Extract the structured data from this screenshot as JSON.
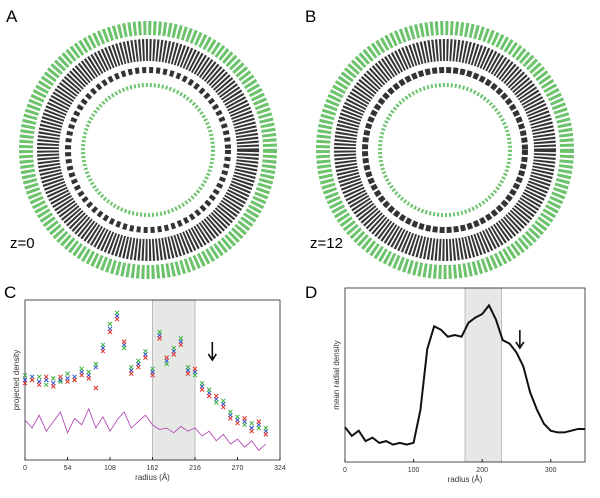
{
  "panels": {
    "a": {
      "letter": "A",
      "caption": "z=0"
    },
    "b": {
      "letter": "B",
      "caption": "z=12"
    }
  },
  "chart_data": [
    {
      "type": "line",
      "letter": "C",
      "xlabel": "radius (Å)",
      "ylabel": "projected density",
      "xlim": [
        0,
        324
      ],
      "ylim": [
        0,
        1
      ],
      "xticks": [
        0,
        54,
        108,
        162,
        216,
        270,
        324
      ],
      "shaded_region": [
        162,
        216
      ],
      "arrow_x": 238,
      "x": [
        0,
        9,
        18,
        27,
        36,
        45,
        54,
        63,
        72,
        81,
        90,
        99,
        108,
        117,
        126,
        135,
        144,
        153,
        162,
        171,
        180,
        189,
        198,
        207,
        216,
        225,
        234,
        243,
        252,
        261,
        270,
        279,
        288,
        297,
        306
      ],
      "series": [
        {
          "color": "#2b4fd6",
          "style": "markers",
          "values": [
            0.5,
            0.52,
            0.49,
            0.5,
            0.48,
            0.5,
            0.51,
            0.52,
            0.55,
            0.53,
            0.58,
            0.7,
            0.82,
            0.9,
            0.72,
            0.56,
            0.6,
            0.66,
            0.55,
            0.78,
            0.62,
            0.68,
            0.74,
            0.56,
            0.55,
            0.46,
            0.42,
            0.38,
            0.35,
            0.28,
            0.25,
            0.24,
            0.2,
            0.22,
            0.18
          ]
        },
        {
          "color": "#3cb043",
          "style": "markers",
          "values": [
            0.53,
            0.5,
            0.52,
            0.47,
            0.51,
            0.49,
            0.54,
            0.5,
            0.57,
            0.55,
            0.6,
            0.72,
            0.85,
            0.92,
            0.7,
            0.58,
            0.62,
            0.68,
            0.57,
            0.8,
            0.6,
            0.7,
            0.76,
            0.58,
            0.53,
            0.48,
            0.44,
            0.36,
            0.37,
            0.3,
            0.27,
            0.22,
            0.23,
            0.2,
            0.2
          ]
        },
        {
          "color": "#e0302a",
          "style": "markers",
          "values": [
            0.48,
            0.5,
            0.47,
            0.52,
            0.46,
            0.52,
            0.49,
            0.5,
            0.53,
            0.51,
            0.45,
            0.68,
            0.8,
            0.88,
            0.74,
            0.54,
            0.58,
            0.64,
            0.53,
            0.76,
            0.64,
            0.66,
            0.72,
            0.54,
            0.57,
            0.44,
            0.4,
            0.4,
            0.33,
            0.26,
            0.23,
            0.26,
            0.18,
            0.24,
            0.16
          ]
        },
        {
          "color": "#b03ab0",
          "style": "line",
          "values": [
            0.25,
            0.2,
            0.28,
            0.18,
            0.24,
            0.3,
            0.17,
            0.26,
            0.22,
            0.32,
            0.2,
            0.27,
            0.18,
            0.25,
            0.3,
            0.2,
            0.24,
            0.28,
            0.22,
            0.19,
            0.2,
            0.17,
            0.21,
            0.18,
            0.2,
            0.15,
            0.18,
            0.12,
            0.16,
            0.1,
            0.13,
            0.08,
            0.12,
            0.06,
            0.1
          ]
        }
      ]
    },
    {
      "type": "line",
      "letter": "D",
      "xlabel": "radius (Å)",
      "ylabel": "mean radial density",
      "xlim": [
        0,
        350
      ],
      "ylim": [
        0,
        1
      ],
      "xticks": [
        0,
        100,
        200,
        300
      ],
      "shaded_region": [
        175,
        228
      ],
      "arrow_x": 255,
      "x": [
        0,
        10,
        20,
        30,
        40,
        50,
        60,
        70,
        80,
        90,
        100,
        110,
        120,
        130,
        140,
        150,
        160,
        170,
        180,
        190,
        200,
        210,
        220,
        230,
        240,
        250,
        260,
        270,
        280,
        290,
        300,
        310,
        320,
        330,
        340,
        350
      ],
      "series": [
        {
          "color": "#111111",
          "style": "line",
          "values": [
            0.2,
            0.15,
            0.18,
            0.12,
            0.14,
            0.11,
            0.12,
            0.1,
            0.11,
            0.1,
            0.11,
            0.3,
            0.65,
            0.78,
            0.76,
            0.72,
            0.73,
            0.72,
            0.8,
            0.83,
            0.85,
            0.9,
            0.82,
            0.7,
            0.68,
            0.63,
            0.55,
            0.4,
            0.3,
            0.22,
            0.18,
            0.17,
            0.17,
            0.18,
            0.19,
            0.19
          ]
        }
      ]
    }
  ]
}
